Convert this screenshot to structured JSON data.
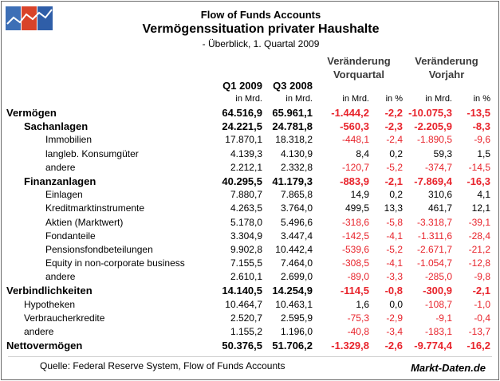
{
  "header": {
    "title": "Flow of Funds Accounts",
    "headline": "Vermögenssituation privater Haushalte",
    "subtitle": "- Überblick, 1. Quartal 2009"
  },
  "columns": {
    "q1": "Q1 2009",
    "q3": "Q3 2008",
    "chg_q_line1": "Veränderung",
    "chg_q_line2": "Vorquartal",
    "chg_y_line1": "Veränderung",
    "chg_y_line2": "Vorjahr",
    "unit_mrd": "in Mrd.",
    "unit_pct": "in %"
  },
  "rows": [
    {
      "label": "Vermögen",
      "v": [
        "64.516,9",
        "65.961,1",
        "-1.444,2",
        "-2,2",
        "-10.075,3",
        "-13,5"
      ]
    },
    {
      "label": "Sachanlagen",
      "v": [
        "24.221,5",
        "24.781,8",
        "-560,3",
        "-2,3",
        "-2.205,9",
        "-8,3"
      ]
    },
    {
      "label": "Immobilien",
      "v": [
        "17.870,1",
        "18.318,2",
        "-448,1",
        "-2,4",
        "-1.890,5",
        "-9,6"
      ]
    },
    {
      "label": "langleb. Konsumgüter",
      "v": [
        "4.139,3",
        "4.130,9",
        "8,4",
        "0,2",
        "59,3",
        "1,5"
      ]
    },
    {
      "label": "andere",
      "v": [
        "2.212,1",
        "2.332,8",
        "-120,7",
        "-5,2",
        "-374,7",
        "-14,5"
      ]
    },
    {
      "label": "Finanzanlagen",
      "v": [
        "40.295,5",
        "41.179,3",
        "-883,9",
        "-2,1",
        "-7.869,4",
        "-16,3"
      ]
    },
    {
      "label": "Einlagen",
      "v": [
        "7.880,7",
        "7.865,8",
        "14,9",
        "0,2",
        "310,6",
        "4,1"
      ]
    },
    {
      "label": "Kreditmarktinstrumente",
      "v": [
        "4.263,5",
        "3.764,0",
        "499,5",
        "13,3",
        "461,7",
        "12,1"
      ]
    },
    {
      "label": "Aktien (Marktwert)",
      "v": [
        "5.178,0",
        "5.496,6",
        "-318,6",
        "-5,8",
        "-3.318,7",
        "-39,1"
      ]
    },
    {
      "label": "Fondanteile",
      "v": [
        "3.304,9",
        "3.447,4",
        "-142,5",
        "-4,1",
        "-1.311,6",
        "-28,4"
      ]
    },
    {
      "label": "Pensionsfondbeteilungen",
      "v": [
        "9.902,8",
        "10.442,4",
        "-539,6",
        "-5,2",
        "-2.671,7",
        "-21,2"
      ]
    },
    {
      "label": "Equity in non-corporate business",
      "v": [
        "7.155,5",
        "7.464,0",
        "-308,5",
        "-4,1",
        "-1.054,7",
        "-12,8"
      ]
    },
    {
      "label": "andere",
      "v": [
        "2.610,1",
        "2.699,0",
        "-89,0",
        "-3,3",
        "-285,0",
        "-9,8"
      ]
    },
    {
      "label": "Verbindlichkeiten",
      "v": [
        "14.140,5",
        "14.254,9",
        "-114,5",
        "-0,8",
        "-300,9",
        "-2,1"
      ]
    },
    {
      "label": "Hypotheken",
      "v": [
        "10.464,7",
        "10.463,1",
        "1,6",
        "0,0",
        "-108,7",
        "-1,0"
      ]
    },
    {
      "label": "Verbraucherkredite",
      "v": [
        "2.520,7",
        "2.595,9",
        "-75,3",
        "-2,9",
        "-9,1",
        "-0,4"
      ]
    },
    {
      "label": "andere",
      "v": [
        "1.155,2",
        "1.196,0",
        "-40,8",
        "-3,4",
        "-183,1",
        "-13,7"
      ]
    },
    {
      "label": "Nettovermögen",
      "v": [
        "50.376,5",
        "51.706,2",
        "-1.329,8",
        "-2,6",
        "-9.774,4",
        "-16,2"
      ]
    }
  ],
  "footer": {
    "source": "Quelle: Federal Reserve System, Flow of Funds Accounts",
    "brand": "Markt-Daten.de"
  },
  "colors": {
    "negative": "#e8242c",
    "logo": [
      "#3d6fb6",
      "#d8432a",
      "#2f5ea8"
    ]
  },
  "icons": {
    "logo": "chart-logo-icon"
  }
}
